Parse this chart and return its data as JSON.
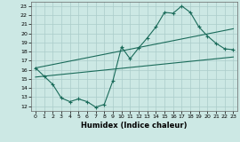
{
  "xlabel": "Humidex (Indice chaleur)",
  "bg_color": "#cce8e4",
  "grid_color": "#aaccca",
  "line_color": "#1a6b5a",
  "xlim": [
    -0.5,
    23.5
  ],
  "ylim": [
    11.5,
    23.5
  ],
  "xticks": [
    0,
    1,
    2,
    3,
    4,
    5,
    6,
    7,
    8,
    9,
    10,
    11,
    12,
    13,
    14,
    15,
    16,
    17,
    18,
    19,
    20,
    21,
    22,
    23
  ],
  "yticks": [
    12,
    13,
    14,
    15,
    16,
    17,
    18,
    19,
    20,
    21,
    22,
    23
  ],
  "main_x": [
    0,
    1,
    2,
    3,
    4,
    5,
    6,
    7,
    8,
    9,
    10,
    11,
    12,
    13,
    14,
    15,
    16,
    17,
    18,
    19,
    20,
    21,
    22,
    23
  ],
  "main_y": [
    16.2,
    15.3,
    14.4,
    12.9,
    12.5,
    12.8,
    12.5,
    11.9,
    12.2,
    14.8,
    18.5,
    17.2,
    18.4,
    19.5,
    20.7,
    22.3,
    22.2,
    23.0,
    22.3,
    20.7,
    19.7,
    18.9,
    18.3,
    18.2
  ],
  "upper_line_x": [
    0,
    23
  ],
  "upper_line_y": [
    16.2,
    20.5
  ],
  "lower_line_x": [
    0,
    23
  ],
  "lower_line_y": [
    15.2,
    17.4
  ]
}
